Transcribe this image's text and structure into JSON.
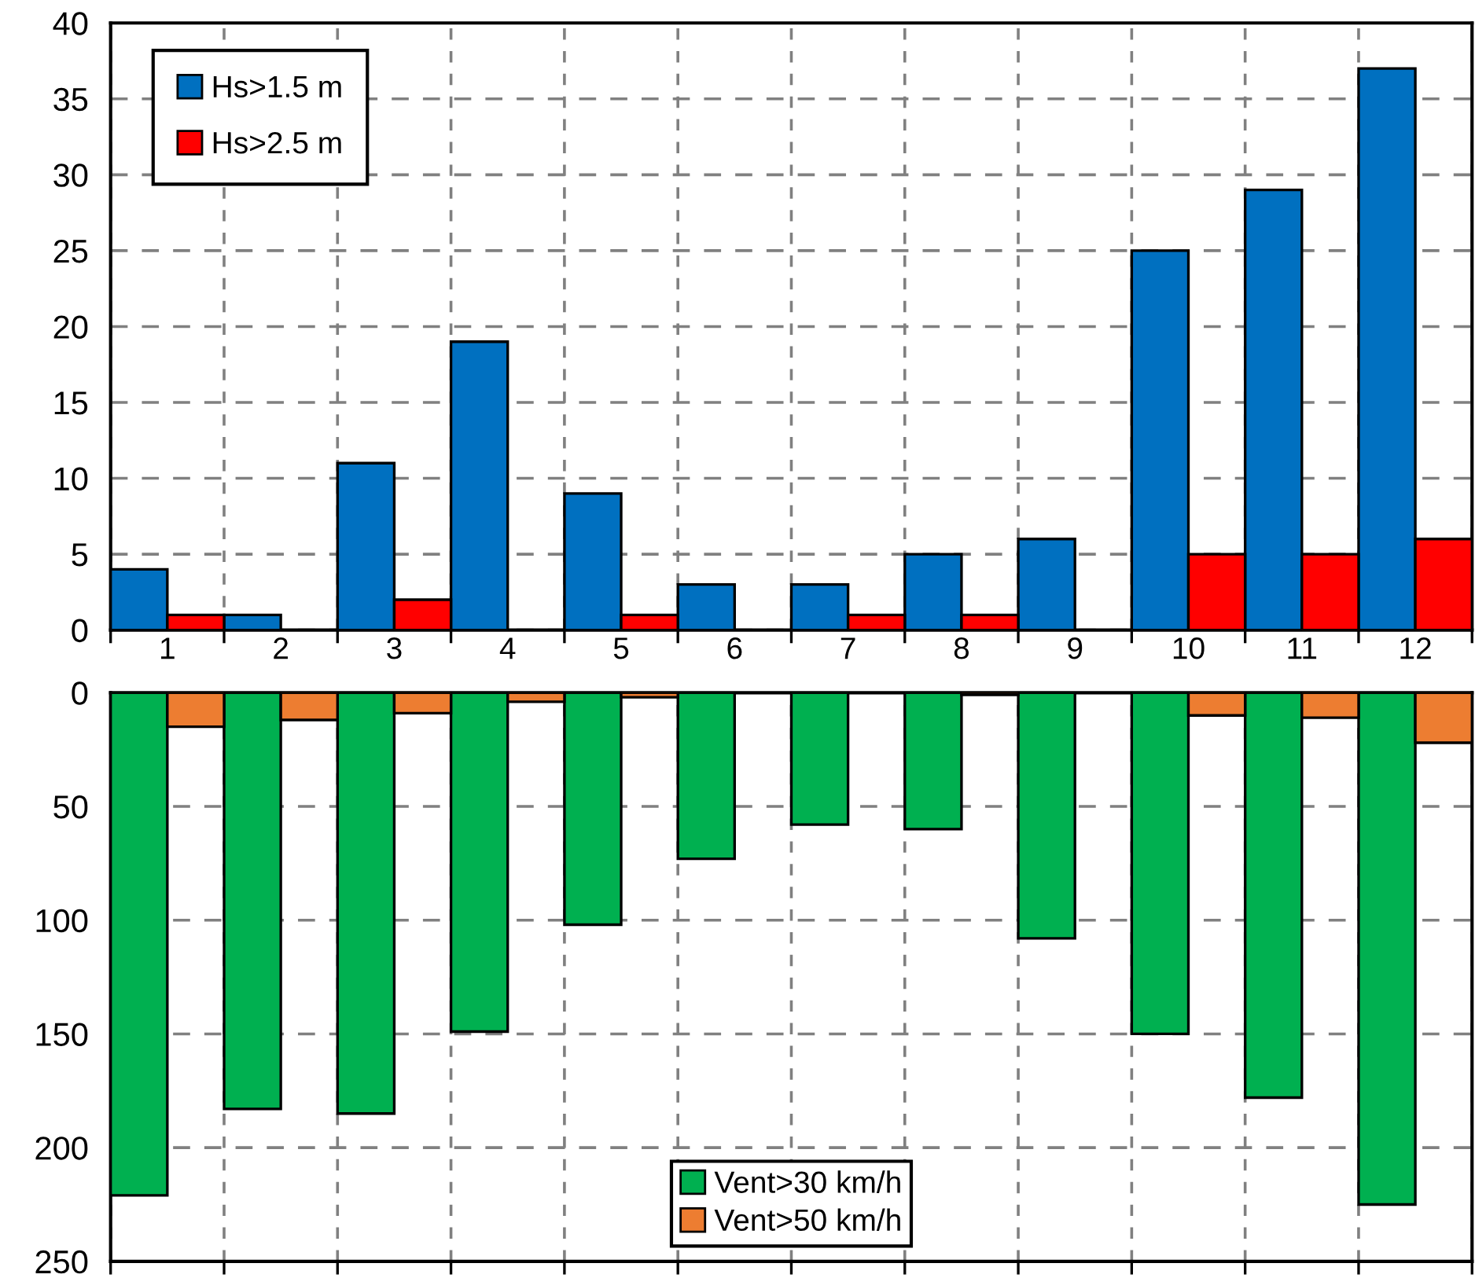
{
  "chart_data": [
    {
      "type": "bar",
      "categories": [
        "1",
        "2",
        "3",
        "4",
        "5",
        "6",
        "7",
        "8",
        "9",
        "10",
        "11",
        "12"
      ],
      "series": [
        {
          "name": "Hs>1.5 m",
          "color": "#0070c0",
          "values": [
            4,
            1,
            11,
            19,
            9,
            3,
            3,
            5,
            6,
            25,
            29,
            37
          ]
        },
        {
          "name": "Hs>2.5 m",
          "color": "#ff0000",
          "values": [
            1,
            0,
            2,
            0,
            1,
            0,
            1,
            1,
            0,
            5,
            5,
            6
          ]
        }
      ],
      "ylim": [
        0,
        40
      ],
      "yticks": [
        0,
        5,
        10,
        15,
        20,
        25,
        30,
        35,
        40
      ],
      "grid": true,
      "legend": "top left"
    },
    {
      "type": "bar",
      "categories": [
        "1",
        "2",
        "3",
        "4",
        "5",
        "6",
        "7",
        "8",
        "9",
        "10",
        "11",
        "12"
      ],
      "series": [
        {
          "name": "Vent>30 km/h",
          "color": "#00b050",
          "values": [
            221,
            183,
            185,
            149,
            102,
            73,
            58,
            60,
            108,
            150,
            178,
            225
          ]
        },
        {
          "name": "Vent>50 km/h",
          "color": "#ed7d31",
          "values": [
            15,
            12,
            9,
            4,
            2,
            0,
            0,
            1,
            0,
            10,
            11,
            22
          ]
        }
      ],
      "ylim": [
        250,
        0
      ],
      "yticks": [
        0,
        50,
        100,
        150,
        200,
        250
      ],
      "grid": true,
      "legend": "bottom",
      "tick_labels": "y"
    }
  ]
}
